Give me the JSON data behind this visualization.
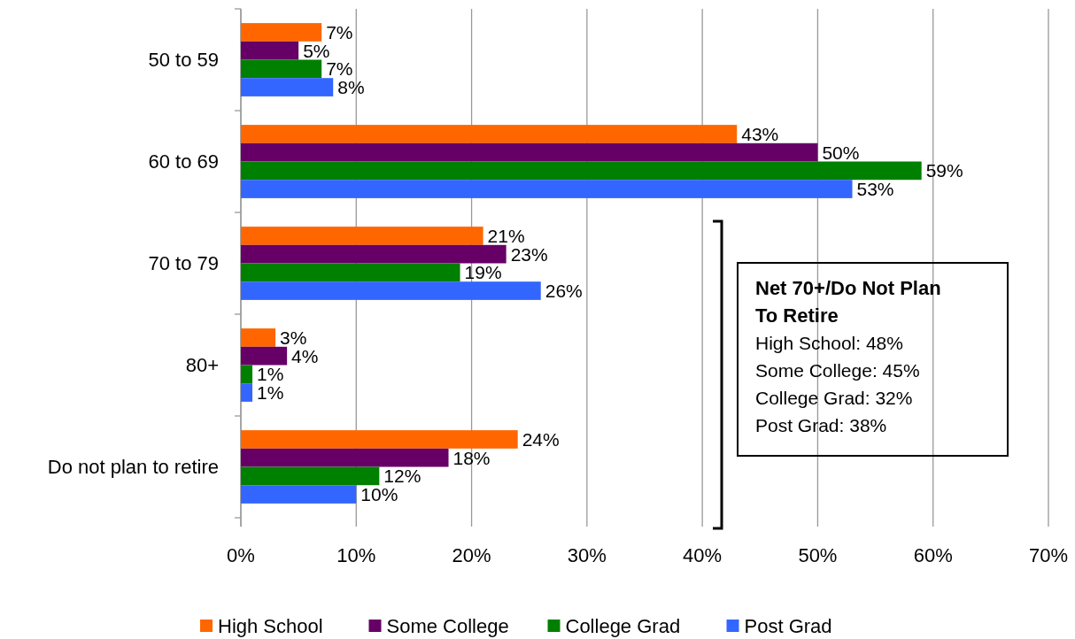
{
  "chart_data": {
    "type": "bar",
    "orientation": "horizontal",
    "categories": [
      "50 to 59",
      "60 to 69",
      "70 to 79",
      "80+",
      "Do not plan to retire"
    ],
    "series": [
      {
        "name": "High School",
        "color": "#ff6600",
        "values": [
          7,
          43,
          21,
          3,
          24
        ],
        "value_labels": [
          "7%",
          "43%",
          "21%",
          "3%",
          "24%"
        ]
      },
      {
        "name": "Some College",
        "color": "#660066",
        "values": [
          5,
          50,
          23,
          4,
          18
        ],
        "value_labels": [
          "5%",
          "50%",
          "23%",
          "4%",
          "18%"
        ]
      },
      {
        "name": "College Grad",
        "color": "#008000",
        "values": [
          7,
          59,
          19,
          1,
          12
        ],
        "value_labels": [
          "7%",
          "59%",
          "19%",
          "1%",
          "12%"
        ]
      },
      {
        "name": "Post Grad",
        "color": "#3366ff",
        "values": [
          8,
          53,
          26,
          1,
          10
        ],
        "value_labels": [
          "8%",
          "53%",
          "26%",
          "1%",
          "10%"
        ]
      }
    ],
    "xlim": [
      0,
      70
    ],
    "xticks": [
      {
        "value": 0,
        "label": "0%"
      },
      {
        "value": 10,
        "label": "10%"
      },
      {
        "value": 20,
        "label": "20%"
      },
      {
        "value": 30,
        "label": "30%"
      },
      {
        "value": 40,
        "label": "40%"
      },
      {
        "value": 50,
        "label": "50%"
      },
      {
        "value": 60,
        "label": "60%"
      },
      {
        "value": 70,
        "label": "70%"
      }
    ],
    "grid": "x",
    "legend": "bottom",
    "annotations": [
      "Net 70+/Do Not Plan To Retire",
      "High School: 48%",
      "Some College: 45%",
      "College Grad: 32%",
      "Post Grad: 38%"
    ]
  }
}
